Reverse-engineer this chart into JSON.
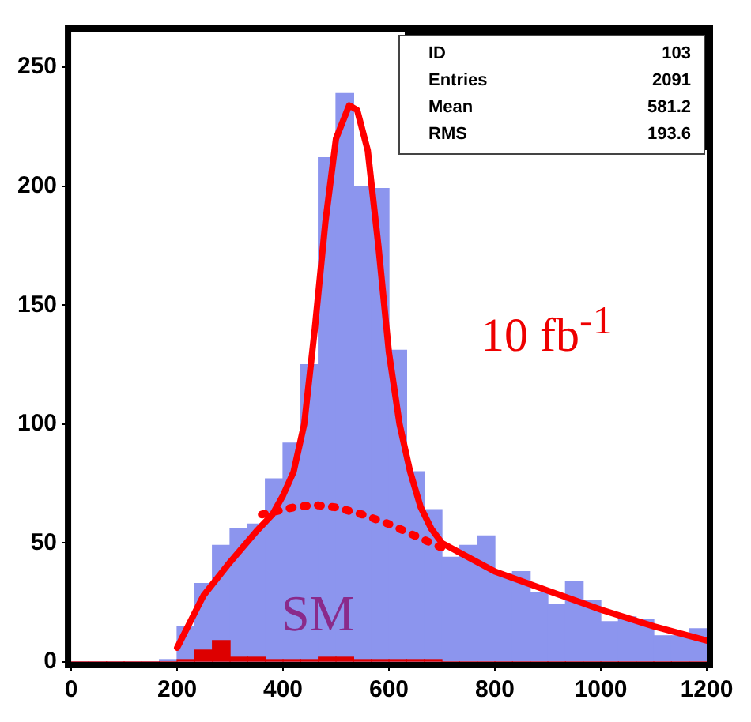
{
  "chart_data": {
    "type": "histogram",
    "bins": [
      0,
      33.3,
      66.7,
      100,
      133.3,
      166.7,
      200,
      233.3,
      266.7,
      300,
      333.3,
      366.7,
      400,
      433.3,
      466.7,
      500,
      533.3,
      566.7,
      600,
      633.3,
      666.7,
      700,
      733.3,
      766.7,
      800,
      833.3,
      866.7,
      900,
      933.3,
      966.7,
      1000,
      1033.3,
      1066.7,
      1100,
      1133.3,
      1166.7,
      1200
    ],
    "series": [
      {
        "color": "#8c95ee",
        "values": [
          0,
          0,
          0,
          0,
          0,
          1,
          15,
          33,
          49,
          56,
          58,
          77,
          92,
          125,
          212,
          239,
          200,
          199,
          131,
          80,
          64,
          44,
          49,
          53,
          37,
          38,
          29,
          24,
          34,
          26,
          17,
          19,
          18,
          11,
          11,
          14
        ]
      },
      {
        "color": "#dd0000",
        "values": [
          0,
          0,
          0,
          0,
          0,
          0,
          1,
          5,
          9,
          2,
          2,
          1,
          1,
          1,
          2,
          2,
          1,
          1,
          1,
          1,
          1,
          0,
          0,
          0,
          0,
          0,
          0,
          0,
          0,
          0,
          0,
          0,
          0,
          0,
          0,
          0
        ]
      },
      {
        "type": "line",
        "color": "#ff0000",
        "line_style": "solid",
        "x": [
          200,
          250,
          300,
          350,
          380,
          400,
          420,
          440,
          460,
          480,
          500,
          525,
          540,
          560,
          580,
          600,
          620,
          640,
          660,
          680,
          700,
          750,
          800,
          900,
          1000,
          1100,
          1200
        ],
        "values": [
          6,
          28,
          42,
          55,
          62,
          70,
          80,
          100,
          140,
          185,
          220,
          234,
          232,
          215,
          175,
          130,
          100,
          80,
          65,
          56,
          50,
          44,
          38,
          30,
          22,
          15,
          9
        ]
      },
      {
        "type": "line",
        "color": "#ff0000",
        "line_style": "dotted",
        "x": [
          360,
          380,
          420,
          460,
          500,
          550,
          600,
          650,
          700
        ],
        "values": [
          62,
          63,
          65,
          66,
          65,
          62,
          58,
          53,
          48
        ]
      }
    ],
    "xlim": [
      0,
      1200
    ],
    "xticks": [
      0,
      200,
      400,
      600,
      800,
      1000,
      1200
    ],
    "ylim": [
      0,
      265
    ],
    "yticks": [
      0,
      50,
      100,
      150,
      200,
      250
    ],
    "grid": false,
    "legend": false,
    "annotations": [
      "ID",
      "103",
      "Entries",
      "2091",
      "Mean",
      "581.2",
      "RMS",
      "193.6",
      "10 fb$^{-1}$",
      "SM"
    ]
  }
}
